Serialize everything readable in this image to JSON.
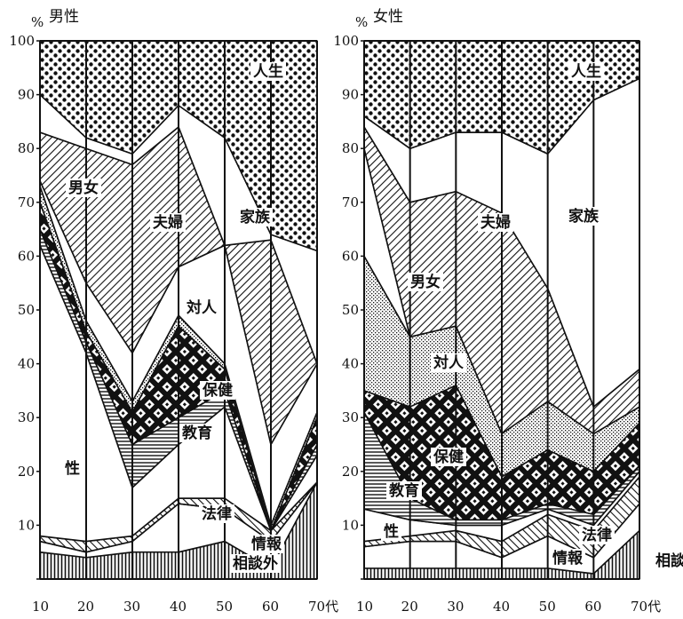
{
  "chart_data": [
    {
      "type": "area",
      "title": "男性",
      "y_unit": "%",
      "x": [
        10,
        20,
        30,
        40,
        50,
        60,
        70
      ],
      "x_tick_labels": [
        "10",
        "20",
        "30",
        "40",
        "50",
        "60",
        "70代"
      ],
      "ylim": [
        0,
        100
      ],
      "y_ticks": [
        0,
        10,
        20,
        30,
        40,
        50,
        60,
        70,
        80,
        90,
        100
      ],
      "stack_order_bottom_to_top": [
        "相談外",
        "情報",
        "法律",
        "性",
        "教育",
        "保健",
        "対人",
        "男女",
        "夫婦",
        "家族",
        "人生"
      ],
      "series": [
        {
          "name": "相談外",
          "values": [
            5,
            4,
            5,
            5,
            7,
            2,
            18
          ]
        },
        {
          "name": "情報",
          "values": [
            2,
            1,
            2,
            9,
            6,
            5,
            0
          ]
        },
        {
          "name": "法律",
          "values": [
            1,
            2,
            1,
            1,
            2,
            2,
            0
          ]
        },
        {
          "name": "性",
          "values": [
            54,
            35,
            9,
            10,
            17,
            0,
            5
          ]
        },
        {
          "name": "教育",
          "values": [
            3,
            2,
            8,
            5,
            3,
            0,
            2
          ]
        },
        {
          "name": "保健",
          "values": [
            5,
            2,
            6,
            17,
            4,
            0,
            5
          ]
        },
        {
          "name": "対人",
          "values": [
            3,
            2,
            2,
            2,
            1,
            1,
            1
          ]
        },
        {
          "name": "男女",
          "values": [
            1,
            7,
            9,
            9,
            22,
            15,
            9
          ]
        },
        {
          "name": "夫婦",
          "values": [
            9,
            25,
            35,
            26,
            0,
            38,
            0
          ]
        },
        {
          "name": "家族",
          "values": [
            7,
            2,
            2,
            4,
            20,
            1,
            21
          ]
        },
        {
          "name": "人生",
          "values": [
            10,
            18,
            21,
            12,
            18,
            36,
            39
          ]
        }
      ]
    },
    {
      "type": "area",
      "title": "女性",
      "y_unit": "%",
      "x": [
        10,
        20,
        30,
        40,
        50,
        60,
        70
      ],
      "x_tick_labels": [
        "10",
        "20",
        "30",
        "40",
        "50",
        "60",
        "70代"
      ],
      "ylim": [
        0,
        100
      ],
      "y_ticks": [
        0,
        10,
        20,
        30,
        40,
        50,
        60,
        70,
        80,
        90,
        100
      ],
      "stack_order_bottom_to_top": [
        "相談外",
        "情報",
        "法律",
        "性",
        "教育",
        "保健",
        "対人",
        "男女",
        "夫婦",
        "家族",
        "人生"
      ],
      "series": [
        {
          "name": "相談外",
          "values": [
            2,
            2,
            2,
            2,
            2,
            1,
            9
          ]
        },
        {
          "name": "情報",
          "values": [
            4,
            5,
            5,
            2,
            6,
            3,
            5
          ]
        },
        {
          "name": "法律",
          "values": [
            1,
            1,
            2,
            3,
            4,
            5,
            5
          ]
        },
        {
          "name": "性",
          "values": [
            6,
            3,
            1,
            3,
            1,
            1,
            1
          ]
        },
        {
          "name": "教育",
          "values": [
            18,
            4,
            1,
            1,
            1,
            2,
            1
          ]
        },
        {
          "name": "保健",
          "values": [
            4,
            17,
            25,
            8,
            10,
            8,
            8
          ]
        },
        {
          "name": "対人",
          "values": [
            25,
            13,
            11,
            8,
            9,
            7,
            3
          ]
        },
        {
          "name": "男女",
          "values": [
            20,
            0,
            0,
            0,
            0,
            0,
            0
          ]
        },
        {
          "name": "夫婦",
          "values": [
            4,
            25,
            25,
            41,
            21,
            5,
            7
          ]
        },
        {
          "name": "家族",
          "values": [
            2,
            10,
            11,
            15,
            25,
            57,
            54
          ]
        },
        {
          "name": "人生",
          "values": [
            14,
            20,
            17,
            17,
            21,
            11,
            7
          ]
        }
      ]
    }
  ]
}
